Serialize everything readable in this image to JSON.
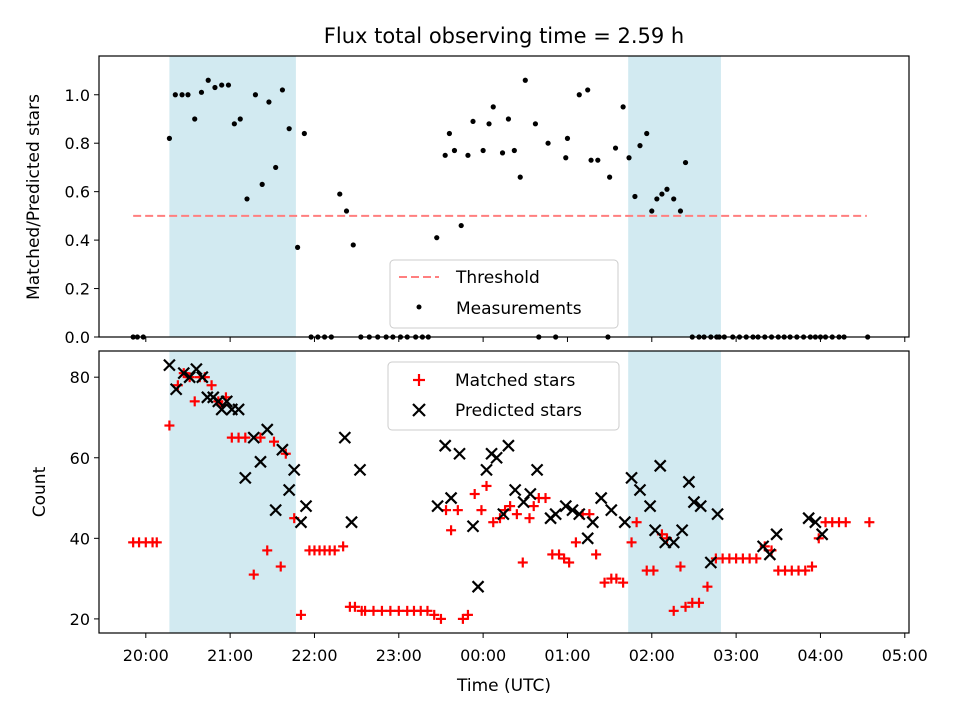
{
  "title": "Flux total observing time = 2.59 h",
  "colors": {
    "threshold": "#ff7f7f",
    "measurements": "#000000",
    "matched": "#ff0000",
    "predicted": "#000000",
    "span": "#add8e6"
  },
  "chart_data": [
    {
      "type": "scatter",
      "name": "ratio-panel",
      "ylabel": "Matched/Predicted stars",
      "ylim": [
        0,
        1.16
      ],
      "yticks": [
        0.0,
        0.2,
        0.4,
        0.6,
        0.8,
        1.0
      ],
      "xlim": [
        -0.555,
        9.05
      ],
      "grid": false,
      "legend_position": "lower center",
      "threshold": {
        "label": "Threshold",
        "value": 0.5,
        "x_range": [
          -0.15,
          8.55
        ]
      },
      "series": [
        {
          "name": "Measurements",
          "x": [
            -0.15,
            -0.1,
            -0.03,
            0.28,
            0.35,
            0.43,
            0.5,
            0.58,
            0.66,
            0.74,
            0.82,
            0.9,
            0.98,
            1.05,
            1.12,
            1.2,
            1.3,
            1.38,
            1.46,
            1.54,
            1.62,
            1.7,
            1.8,
            1.88,
            1.96,
            2.04,
            2.12,
            2.2,
            2.3,
            2.38,
            2.46,
            2.55,
            2.65,
            2.75,
            2.85,
            2.93,
            3.02,
            3.1,
            3.2,
            3.28,
            3.35,
            3.45,
            3.55,
            3.6,
            3.66,
            3.74,
            3.82,
            3.88,
            4.0,
            4.07,
            4.12,
            4.23,
            4.3,
            4.37,
            4.44,
            4.5,
            4.62,
            4.66,
            4.77,
            4.86,
            4.98,
            5.0,
            5.14,
            5.24,
            5.28,
            5.36,
            5.48,
            5.5,
            5.57,
            5.66,
            5.73,
            5.8,
            5.86,
            5.94,
            6.0,
            6.06,
            6.12,
            6.18,
            6.26,
            6.34,
            6.4,
            6.48,
            6.56,
            6.62,
            6.7,
            6.77,
            6.8,
            6.86,
            6.96,
            7.04,
            7.12,
            7.2,
            7.26,
            7.34,
            7.42,
            7.5,
            7.57,
            7.64,
            7.72,
            7.8,
            7.88,
            7.94,
            8.0,
            8.06,
            8.14,
            8.22,
            8.28,
            8.56
          ],
          "y": [
            0,
            0,
            0,
            0.82,
            1.0,
            1.0,
            1.0,
            0.9,
            1.01,
            1.06,
            1.03,
            1.04,
            1.04,
            0.88,
            0.9,
            0.57,
            1.0,
            0.63,
            0.97,
            0.7,
            1.02,
            0.86,
            0.37,
            0.84,
            0,
            0,
            0,
            0,
            0.59,
            0.52,
            0.38,
            0,
            0,
            0,
            0,
            0,
            0,
            0,
            0,
            0,
            0,
            0.41,
            0.75,
            0.84,
            0.77,
            0.46,
            0.75,
            0.89,
            0.77,
            0.88,
            0.95,
            0.76,
            0.9,
            0.77,
            0.66,
            1.06,
            0.88,
            0,
            0.8,
            0,
            0.74,
            0.82,
            1.0,
            1.02,
            0.73,
            0.73,
            0,
            0.66,
            0.78,
            0.95,
            0.74,
            0.58,
            0.79,
            0.84,
            0.52,
            0.57,
            0.59,
            0.61,
            0.57,
            0.52,
            0.72,
            0,
            0,
            0,
            0,
            0,
            0,
            0,
            0,
            0,
            0,
            0,
            0,
            0,
            0,
            0,
            0,
            0,
            0,
            0,
            0,
            0,
            0,
            0,
            0,
            0,
            0,
            0
          ],
          "note_removed": true
        }
      ]
    },
    {
      "type": "scatter",
      "name": "count-panel",
      "xlabel": "Time (UTC)",
      "ylabel": "Count",
      "ylim": [
        16.5,
        86.5
      ],
      "yticks": [
        20,
        40,
        60,
        80
      ],
      "xlim": [
        -0.555,
        9.05
      ],
      "xtick_labels": [
        "20:00",
        "21:00",
        "22:00",
        "23:00",
        "00:00",
        "01:00",
        "02:00",
        "03:00",
        "04:00",
        "05:00"
      ],
      "grid": false,
      "legend_position": "upper center",
      "series": [
        {
          "name": "Matched stars",
          "x": [
            -0.15,
            -0.08,
            0.0,
            0.08,
            0.13,
            0.28,
            0.38,
            0.45,
            0.52,
            0.58,
            0.64,
            0.7,
            0.78,
            0.86,
            0.9,
            0.95,
            1.02,
            1.1,
            1.18,
            1.28,
            1.36,
            1.44,
            1.52,
            1.6,
            1.66,
            1.76,
            1.84,
            1.94,
            2.0,
            2.06,
            2.12,
            2.18,
            2.24,
            2.34,
            2.42,
            2.48,
            2.56,
            2.6,
            2.7,
            2.8,
            2.9,
            3.0,
            3.1,
            3.18,
            3.26,
            3.34,
            3.42,
            3.5,
            3.56,
            3.62,
            3.7,
            3.76,
            3.82,
            3.9,
            3.98,
            4.04,
            4.12,
            4.2,
            4.26,
            4.32,
            4.4,
            4.47,
            4.55,
            4.6,
            4.66,
            4.74,
            4.82,
            4.9,
            4.96,
            5.02,
            5.1,
            5.18,
            5.26,
            5.34,
            5.44,
            5.52,
            5.58,
            5.66,
            5.76,
            5.82,
            5.94,
            6.02,
            6.12,
            6.18,
            6.26,
            6.34,
            6.4,
            6.48,
            6.56,
            6.66,
            6.76,
            6.84,
            6.92,
            7.0,
            7.08,
            7.16,
            7.24,
            7.34,
            7.42,
            7.5,
            7.58,
            7.66,
            7.74,
            7.82,
            7.9,
            7.98,
            8.06,
            8.14,
            8.22,
            8.3,
            8.58
          ],
          "y": [
            39,
            39,
            39,
            39,
            39,
            68,
            78,
            81,
            80,
            74,
            80,
            80,
            78,
            74,
            73,
            75,
            65,
            65,
            65,
            31,
            65,
            37,
            64,
            33,
            61,
            45,
            21,
            37,
            37,
            37,
            37,
            37,
            37,
            38,
            23,
            23,
            22,
            22,
            22,
            22,
            22,
            22,
            22,
            22,
            22,
            22,
            21,
            20,
            47,
            42,
            47,
            20,
            21,
            51,
            47,
            53,
            44,
            45,
            47,
            48,
            46,
            34,
            45,
            48,
            50,
            50,
            36,
            36,
            35,
            34,
            39,
            46,
            46,
            36,
            29,
            30,
            30,
            29,
            39,
            44,
            32,
            32,
            41,
            40,
            22,
            33,
            23,
            24,
            24,
            28,
            35,
            35,
            35,
            35,
            35,
            35,
            35,
            38,
            37,
            32,
            32,
            32,
            32,
            32,
            33,
            40,
            44,
            44,
            44,
            44,
            44
          ],
          "note_removed": true
        },
        {
          "name": "Predicted stars",
          "x": [
            0.28,
            0.36,
            0.45,
            0.52,
            0.6,
            0.67,
            0.73,
            0.8,
            0.86,
            0.9,
            0.96,
            1.02,
            1.1,
            1.18,
            1.28,
            1.36,
            1.44,
            1.54,
            1.62,
            1.7,
            1.76,
            1.84,
            1.9,
            2.36,
            2.44,
            2.54,
            3.46,
            3.55,
            3.62,
            3.72,
            3.88,
            3.94,
            4.04,
            4.1,
            4.16,
            4.24,
            4.3,
            4.38,
            4.48,
            4.56,
            4.64,
            4.8,
            4.86,
            4.98,
            5.06,
            5.14,
            5.24,
            5.3,
            5.4,
            5.52,
            5.68,
            5.76,
            5.86,
            5.98,
            6.04,
            6.1,
            6.16,
            6.26,
            6.36,
            6.44,
            6.5,
            6.58,
            6.7,
            6.78,
            7.32,
            7.4,
            7.48,
            7.86,
            7.94,
            8.02
          ],
          "y": [
            83,
            77,
            81,
            80,
            82,
            80,
            75,
            75,
            74,
            72,
            74,
            72,
            72,
            55,
            65,
            59,
            67,
            47,
            62,
            52,
            57,
            44,
            48,
            65,
            44,
            57,
            48,
            63,
            50,
            61,
            43,
            28,
            57,
            61,
            60,
            46,
            63,
            52,
            49,
            51,
            57,
            45,
            46,
            48,
            47,
            46,
            40,
            44,
            50,
            47,
            44,
            55,
            52,
            48,
            42,
            58,
            39,
            39,
            42,
            54,
            49,
            48,
            34,
            46,
            38,
            36,
            41,
            45,
            44,
            41
          ],
          "note_removed": true
        }
      ]
    }
  ],
  "spans": [
    [
      0.28,
      1.78
    ],
    [
      5.72,
      6.82
    ]
  ]
}
